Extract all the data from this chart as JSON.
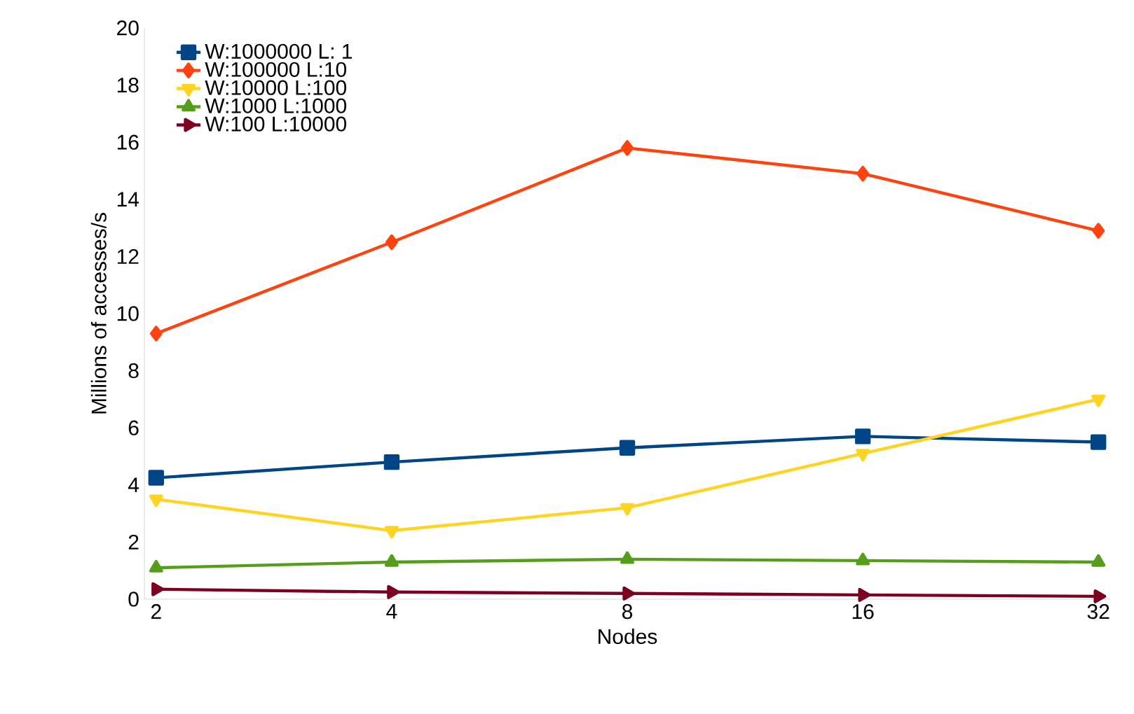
{
  "chart_data": {
    "type": "line",
    "xlabel": "Nodes",
    "ylabel": "Millions of accesses/s",
    "categories": [
      "2",
      "4",
      "8",
      "16",
      "32"
    ],
    "ylim": [
      0,
      20
    ],
    "yticks": [
      0,
      2,
      4,
      6,
      8,
      10,
      12,
      14,
      16,
      18,
      20
    ],
    "legend": "top left",
    "grid": false,
    "series": [
      {
        "name": "W:1000000   L: 1",
        "color": "#004586",
        "marker": "square",
        "values": [
          4.25,
          4.8,
          5.3,
          5.7,
          5.5
        ]
      },
      {
        "name": "W:100000   L:10",
        "color": "#ff420e",
        "marker": "diamond",
        "values": [
          9.3,
          12.5,
          15.8,
          14.9,
          12.9
        ]
      },
      {
        "name": "W:10000   L:100",
        "color": "#ffd320",
        "marker": "triangle-down",
        "values": [
          3.5,
          2.4,
          3.2,
          5.1,
          7.0
        ]
      },
      {
        "name": "W:1000   L:1000",
        "color": "#579d1c",
        "marker": "triangle",
        "values": [
          1.1,
          1.3,
          1.4,
          1.35,
          1.3
        ]
      },
      {
        "name": "W:100   L:10000",
        "color": "#7e0021",
        "marker": "triangle-right",
        "values": [
          0.35,
          0.25,
          0.2,
          0.15,
          0.1
        ]
      }
    ]
  }
}
